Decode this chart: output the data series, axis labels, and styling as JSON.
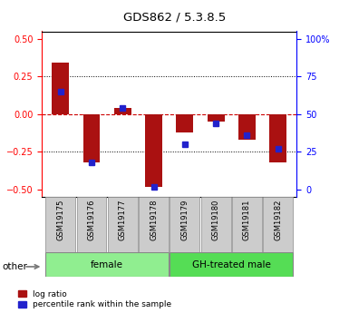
{
  "title": "GDS862 / 5.3.8.5",
  "samples": [
    "GSM19175",
    "GSM19176",
    "GSM19177",
    "GSM19178",
    "GSM19179",
    "GSM19180",
    "GSM19181",
    "GSM19182"
  ],
  "log_ratio": [
    0.34,
    -0.32,
    0.04,
    -0.48,
    -0.12,
    -0.05,
    -0.17,
    -0.32
  ],
  "percentile_rank_pct": [
    65,
    18,
    54,
    2,
    30,
    44,
    36,
    27
  ],
  "groups": [
    {
      "label": "female",
      "start": 0,
      "end": 4,
      "color": "#90EE90"
    },
    {
      "label": "GH-treated male",
      "start": 4,
      "end": 8,
      "color": "#55DD55"
    }
  ],
  "ylim_left": [
    -0.55,
    0.55
  ],
  "yticks_left": [
    -0.5,
    -0.25,
    0.0,
    0.25,
    0.5
  ],
  "ytick_labels_right": [
    "0",
    "25",
    "50",
    "75",
    "100%"
  ],
  "bar_color_red": "#AA1111",
  "bar_color_blue": "#2222CC",
  "zero_line_color": "#CC0000",
  "legend_red": "log ratio",
  "legend_blue": "percentile rank within the sample",
  "other_label": "other",
  "bar_width": 0.55
}
